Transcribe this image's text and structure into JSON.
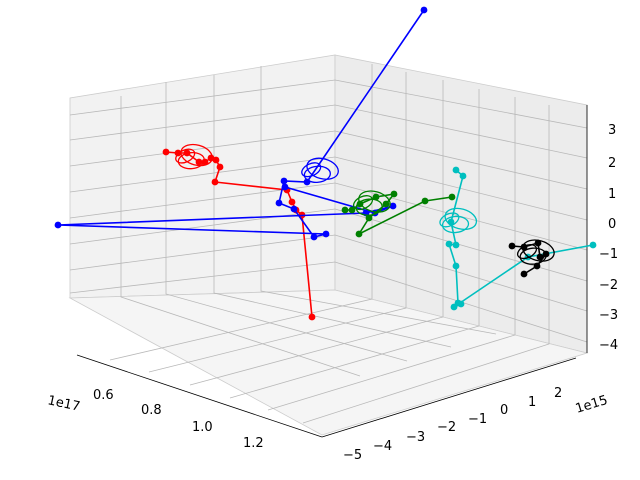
{
  "chart_data": {
    "type": "3d-line-scatter",
    "grid": true,
    "axes": {
      "x": {
        "ticks": [
          "0.6",
          "0.8",
          "1.0",
          "1.2"
        ],
        "offset_label": "1e17",
        "range": [
          0.5,
          1.35
        ]
      },
      "y": {
        "ticks": [
          "−5",
          "−4",
          "−3",
          "−2",
          "−1",
          "0",
          "1",
          "2"
        ],
        "offset_label": "1e15",
        "range": [
          -5.3,
          2.7
        ]
      },
      "z": {
        "ticks": [
          "−4",
          "−3",
          "−2",
          "−1",
          "0",
          "1",
          "2",
          "3"
        ],
        "range": [
          -4.4,
          3.6
        ]
      }
    },
    "series": [
      {
        "color": "#ff0000",
        "points_2d": [
          [
            166,
            152
          ],
          [
            178,
            153
          ],
          [
            187,
            153
          ],
          [
            199,
            162
          ],
          [
            205,
            162
          ],
          [
            211,
            158
          ],
          [
            216,
            160
          ],
          [
            220,
            167
          ],
          [
            215,
            182
          ],
          [
            287,
            190
          ],
          [
            292,
            202
          ],
          [
            296,
            210
          ],
          [
            302,
            215
          ],
          [
            312,
            317
          ]
        ]
      },
      {
        "color": "#0000ff",
        "points_2d": [
          [
            424,
            10
          ],
          [
            307,
            182
          ],
          [
            284,
            181
          ],
          [
            279,
            203
          ],
          [
            294,
            209
          ],
          [
            314,
            237
          ],
          [
            326,
            234
          ],
          [
            58,
            225
          ],
          [
            366,
            213
          ],
          [
            393,
            206
          ],
          [
            375,
            213
          ],
          [
            285,
            187
          ]
        ]
      },
      {
        "color": "#008000",
        "points_2d": [
          [
            345,
            210
          ],
          [
            352,
            210
          ],
          [
            360,
            204
          ],
          [
            376,
            197
          ],
          [
            394,
            194
          ],
          [
            386,
            204
          ],
          [
            369,
            218
          ],
          [
            359,
            234
          ],
          [
            425,
            201
          ],
          [
            452,
            197
          ]
        ]
      },
      {
        "color": "#00bfbf",
        "points_2d": [
          [
            456,
            170
          ],
          [
            463,
            176
          ],
          [
            451,
            222
          ],
          [
            456,
            245
          ],
          [
            449,
            244
          ],
          [
            456,
            266
          ],
          [
            458,
            303
          ],
          [
            461,
            304
          ],
          [
            454,
            307
          ],
          [
            528,
            257
          ],
          [
            593,
            245
          ]
        ]
      },
      {
        "color": "#000000",
        "points_2d": [
          [
            512,
            246
          ],
          [
            524,
            247
          ],
          [
            538,
            243
          ],
          [
            540,
            257
          ],
          [
            546,
            254
          ],
          [
            537,
            266
          ],
          [
            524,
            274
          ]
        ]
      }
    ]
  }
}
